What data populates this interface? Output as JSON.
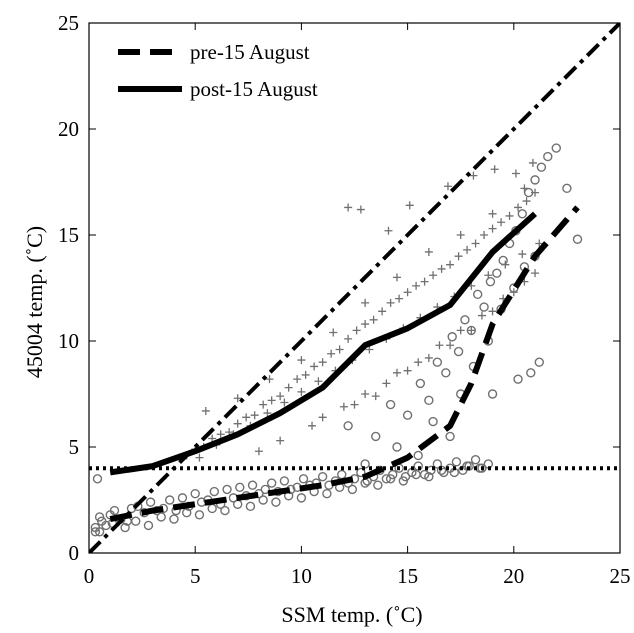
{
  "chart_data": {
    "type": "scatter",
    "xlabel": "SSM temp. (˚C)",
    "ylabel": "45004 temp. (˚C)",
    "xlim": [
      0,
      25
    ],
    "ylim": [
      0,
      25
    ],
    "x_ticks": [
      0,
      5,
      10,
      15,
      20,
      25
    ],
    "y_ticks": [
      0,
      5,
      10,
      15,
      20,
      25
    ],
    "grid": false,
    "legend_position": "top-left",
    "colors": {
      "axes": "#000000",
      "points": "#707070",
      "lines": "#000000"
    },
    "series": [
      {
        "name": "pre-15 August",
        "kind": "line",
        "style": "dashed",
        "x": [
          1,
          3,
          5,
          7,
          9,
          11,
          13,
          15,
          17,
          18,
          19,
          21,
          23
        ],
        "y": [
          1.6,
          2.0,
          2.3,
          2.6,
          2.9,
          3.2,
          3.6,
          4.5,
          6.0,
          8.0,
          10.8,
          14.0,
          16.3
        ]
      },
      {
        "name": "post-15 August",
        "kind": "line",
        "style": "solid",
        "x": [
          1,
          3,
          5,
          7,
          9,
          11,
          13,
          15,
          17,
          19,
          21
        ],
        "y": [
          3.8,
          4.1,
          4.8,
          5.6,
          6.6,
          7.8,
          9.8,
          10.6,
          11.7,
          14.2,
          16.0
        ]
      },
      {
        "name": "",
        "kind": "line",
        "style": "dash-dot",
        "x": [
          0,
          25
        ],
        "y": [
          0,
          25
        ]
      },
      {
        "name": "",
        "kind": "line",
        "style": "dotted",
        "x": [
          0,
          25
        ],
        "y": [
          4,
          4
        ]
      },
      {
        "name": "",
        "kind": "scatter",
        "marker": "circle",
        "x": [
          0.3,
          0.4,
          0.5,
          0.6,
          0.8,
          1.0,
          1.2,
          1.5,
          1.8,
          2.0,
          2.3,
          2.6,
          2.9,
          3.2,
          3.5,
          3.8,
          4.1,
          4.4,
          4.7,
          5.0,
          5.3,
          5.6,
          5.9,
          6.2,
          6.5,
          6.8,
          7.1,
          7.4,
          7.7,
          8.0,
          8.3,
          8.6,
          8.9,
          9.2,
          9.5,
          9.8,
          10.1,
          10.4,
          10.7,
          11.0,
          11.3,
          11.6,
          11.9,
          12.2,
          12.5,
          12.8,
          13.1,
          13.4,
          13.7,
          14.0,
          14.3,
          14.6,
          14.9,
          15.2,
          15.5,
          15.8,
          16.1,
          16.4,
          16.7,
          17.0,
          17.3,
          17.6,
          17.9,
          18.2,
          18.5,
          18.8,
          0.5,
          1.1,
          1.7,
          2.2,
          2.8,
          3.4,
          4.0,
          4.6,
          5.2,
          5.8,
          6.4,
          7.0,
          7.6,
          8.2,
          8.8,
          9.4,
          10.0,
          10.6,
          11.2,
          11.8,
          12.4,
          13.0,
          13.6,
          14.2,
          14.8,
          15.4,
          16.0,
          16.6,
          17.2,
          17.8,
          18.4,
          0.3,
          12.2,
          13.5,
          14.2,
          15.0,
          15.6,
          16.0,
          16.4,
          16.8,
          17.1,
          17.4,
          17.7,
          18.0,
          18.3,
          18.6,
          18.9,
          19.2,
          19.5,
          19.8,
          20.1,
          20.4,
          20.7,
          21.0,
          21.3,
          21.6,
          22.0,
          22.5,
          23.0,
          13.0,
          14.5,
          15.5,
          16.2,
          17.0,
          17.5,
          18.1,
          18.8,
          19.4,
          20.0,
          20.5,
          21.0,
          19.0,
          20.2,
          20.8,
          21.2
        ],
        "y": [
          1.2,
          3.5,
          1.7,
          1.5,
          1.3,
          1.8,
          2.0,
          1.6,
          1.5,
          2.1,
          2.2,
          1.9,
          2.4,
          2.0,
          2.1,
          2.5,
          2.0,
          2.6,
          2.2,
          2.8,
          2.4,
          2.5,
          2.9,
          2.3,
          3.0,
          2.6,
          3.1,
          2.7,
          3.2,
          2.8,
          3.0,
          3.3,
          2.9,
          3.4,
          3.0,
          3.1,
          3.5,
          3.2,
          3.3,
          3.6,
          3.2,
          3.4,
          3.7,
          3.3,
          3.5,
          3.8,
          3.4,
          3.6,
          3.9,
          3.5,
          3.7,
          4.0,
          3.6,
          3.8,
          4.1,
          3.7,
          3.9,
          4.2,
          3.8,
          4.0,
          4.3,
          3.9,
          4.1,
          4.4,
          4.0,
          4.2,
          1.0,
          1.4,
          1.2,
          1.5,
          1.3,
          1.7,
          1.6,
          1.9,
          1.8,
          2.1,
          2.0,
          2.3,
          2.2,
          2.5,
          2.4,
          2.7,
          2.6,
          2.9,
          2.8,
          3.1,
          3.0,
          3.3,
          3.2,
          3.5,
          3.4,
          3.7,
          3.6,
          3.9,
          3.8,
          4.1,
          4.0,
          1.0,
          6.0,
          5.5,
          7.0,
          6.5,
          8.0,
          7.2,
          9.0,
          8.5,
          10.2,
          9.5,
          11.0,
          10.5,
          12.2,
          11.6,
          12.8,
          13.2,
          13.8,
          14.6,
          15.2,
          16.0,
          17.0,
          17.6,
          18.2,
          18.7,
          19.1,
          17.2,
          14.8,
          4.2,
          5.0,
          4.6,
          6.2,
          5.5,
          7.5,
          8.8,
          10.0,
          11.5,
          12.5,
          13.5,
          14.0,
          7.5,
          8.2,
          8.5,
          9.0
        ]
      },
      {
        "name": "",
        "kind": "scatter",
        "marker": "plus",
        "x": [
          4.6,
          5.0,
          5.4,
          5.8,
          6.2,
          6.6,
          7.0,
          7.4,
          7.8,
          8.2,
          8.6,
          9.0,
          9.4,
          9.8,
          10.2,
          10.6,
          11.0,
          11.4,
          11.8,
          12.2,
          12.6,
          13.0,
          13.4,
          13.8,
          14.2,
          14.6,
          15.0,
          15.4,
          15.8,
          16.2,
          16.6,
          17.0,
          17.4,
          17.8,
          18.2,
          18.6,
          19.0,
          19.4,
          19.8,
          20.2,
          20.6,
          21.0,
          5.2,
          6.0,
          6.8,
          7.6,
          8.4,
          9.2,
          10.0,
          10.8,
          11.6,
          12.4,
          13.2,
          14.0,
          14.8,
          15.6,
          16.4,
          17.2,
          18.0,
          18.8,
          19.6,
          20.4,
          21.2,
          5.5,
          7.0,
          8.5,
          10.0,
          11.5,
          13.0,
          14.5,
          16.0,
          17.5,
          19.0,
          20.5,
          12.5,
          13.5,
          14.5,
          15.5,
          16.5,
          17.5,
          18.5,
          19.5,
          20.5,
          8.0,
          9.0,
          10.5,
          11.0,
          12.0,
          13.0,
          14.0,
          15.0,
          16.0,
          17.0,
          18.0,
          19.0,
          20.0,
          21.0,
          12.2,
          12.8,
          14.1,
          15.1,
          16.9,
          18.1,
          19.1,
          20.1,
          20.9
        ],
        "y": [
          4.6,
          4.9,
          5.0,
          5.4,
          5.6,
          5.7,
          6.1,
          6.4,
          6.5,
          7.0,
          7.2,
          7.4,
          7.8,
          8.2,
          8.4,
          8.8,
          9.0,
          9.4,
          9.6,
          10.1,
          10.5,
          10.8,
          11.0,
          11.4,
          11.8,
          12.0,
          12.3,
          12.6,
          12.8,
          13.1,
          13.4,
          13.6,
          14.0,
          14.3,
          14.6,
          15.0,
          15.3,
          15.6,
          15.9,
          16.3,
          16.6,
          17.0,
          4.5,
          5.1,
          5.6,
          6.0,
          6.6,
          7.1,
          7.6,
          8.1,
          8.6,
          9.1,
          9.6,
          10.1,
          10.6,
          11.1,
          11.6,
          12.1,
          12.6,
          13.1,
          13.6,
          14.1,
          14.6,
          6.7,
          7.3,
          8.2,
          9.1,
          10.4,
          11.8,
          13.0,
          14.2,
          15.0,
          16.0,
          17.2,
          7.0,
          7.4,
          8.5,
          9.0,
          9.8,
          10.5,
          11.2,
          12.0,
          12.8,
          4.8,
          5.3,
          6.0,
          6.4,
          6.9,
          7.5,
          8.0,
          8.6,
          9.2,
          9.8,
          10.5,
          11.4,
          12.3,
          13.2,
          16.3,
          16.2,
          15.2,
          16.4,
          17.3,
          17.8,
          18.1,
          17.9,
          18.4
        ]
      }
    ]
  }
}
